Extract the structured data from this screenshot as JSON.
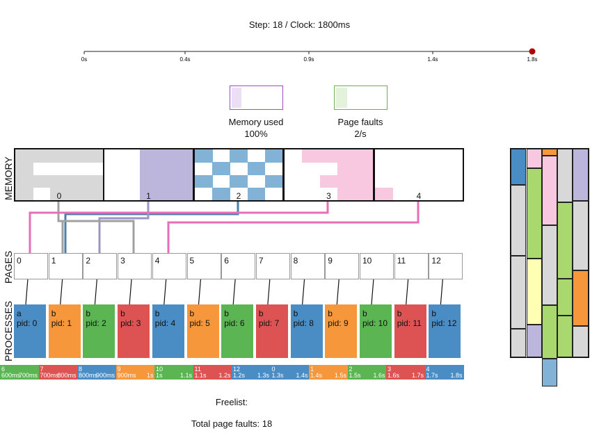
{
  "step_label": "Step: 18 /  Clock: 1800ms",
  "timeline": {
    "ticks": [
      "0s",
      "0.4s",
      "0.9s",
      "1.4s",
      "1.8s"
    ],
    "marker_color": "#b30000"
  },
  "meters": [
    {
      "label": "Memory used",
      "value": "100%",
      "color": "#a24bc7"
    },
    {
      "label": "Page faults",
      "value": "2/s",
      "color": "#6ab04c"
    }
  ],
  "sections": {
    "memory": "MEMORY",
    "pages": "PAGES",
    "processes": "PROCESSES"
  },
  "memory_frames": [
    {
      "id": "0",
      "color": "#d8d8d8"
    },
    {
      "id": "1",
      "color": "#bcb6dd"
    },
    {
      "id": "2",
      "color": "#82b3d6"
    },
    {
      "id": "3",
      "color": "#f8c8e0"
    },
    {
      "id": "4",
      "color": "#f8c8e0"
    }
  ],
  "pages": [
    "0",
    "1",
    "2",
    "3",
    "4",
    "5",
    "6",
    "7",
    "8",
    "9",
    "10",
    "11",
    "12"
  ],
  "processes": [
    {
      "name": "a",
      "pid": "pid: 0",
      "color": "#4a8cc4"
    },
    {
      "name": "b",
      "pid": "pid: 1",
      "color": "#f7973b"
    },
    {
      "name": "b",
      "pid": "pid: 2",
      "color": "#5ab552"
    },
    {
      "name": "b",
      "pid": "pid: 3",
      "color": "#dd5353"
    },
    {
      "name": "b",
      "pid": "pid: 4",
      "color": "#4a8cc4"
    },
    {
      "name": "b",
      "pid": "pid: 5",
      "color": "#f7973b"
    },
    {
      "name": "b",
      "pid": "pid: 6",
      "color": "#5ab552"
    },
    {
      "name": "b",
      "pid": "pid: 7",
      "color": "#dd5353"
    },
    {
      "name": "b",
      "pid": "pid: 8",
      "color": "#4a8cc4"
    },
    {
      "name": "b",
      "pid": "pid: 9",
      "color": "#f7973b"
    },
    {
      "name": "b",
      "pid": "pid: 10",
      "color": "#5ab552"
    },
    {
      "name": "b",
      "pid": "pid: 11",
      "color": "#dd5353"
    },
    {
      "name": "b",
      "pid": "pid: 12",
      "color": "#4a8cc4"
    }
  ],
  "schedule": [
    {
      "pid": "6",
      "t0": "600ms",
      "t1": "700ms",
      "color": "#5ab552"
    },
    {
      "pid": "7",
      "t0": "700ms",
      "t1": "800ms",
      "color": "#dd5353"
    },
    {
      "pid": "8",
      "t0": "800ms",
      "t1": "900ms",
      "color": "#4a8cc4"
    },
    {
      "pid": "9",
      "t0": "900ms",
      "t1": "1s",
      "color": "#f7973b"
    },
    {
      "pid": "10",
      "t0": "1s",
      "t1": "1.1s",
      "color": "#5ab552"
    },
    {
      "pid": "11",
      "t0": "1.1s",
      "t1": "1.2s",
      "color": "#dd5353"
    },
    {
      "pid": "12",
      "t0": "1.2s",
      "t1": "1.3s",
      "color": "#4a8cc4"
    },
    {
      "pid": "0",
      "t0": "1.3s",
      "t1": "1.4s",
      "color": "#4a8cc4"
    },
    {
      "pid": "1",
      "t0": "1.4s",
      "t1": "1.5s",
      "color": "#f7973b"
    },
    {
      "pid": "2",
      "t0": "1.5s",
      "t1": "1.6s",
      "color": "#5ab552"
    },
    {
      "pid": "3",
      "t0": "1.6s",
      "t1": "1.7s",
      "color": "#dd5353"
    },
    {
      "pid": "4",
      "t0": "1.7s",
      "t1": "1.8s",
      "color": "#4a8cc4"
    }
  ],
  "freelist_label": "Freelist:",
  "total_faults_label": "Total page faults: 18",
  "disk_columns": [
    [
      "#4a8cc4",
      "#d8d8d8",
      "#d8d8d8",
      "#d8d8d8"
    ],
    [
      "#f8c8e0",
      "#a9d86e",
      "#ffffb3",
      "#bcb6dd"
    ],
    [
      "#f7973b",
      "#f8c8e0",
      "#d8d8d8",
      "#a9d86e",
      "#82b3d6"
    ],
    [
      "#d8d8d8",
      "#a9d86e",
      "#a9d86e",
      "#a9d86e"
    ],
    [
      "#bcb6dd",
      "#d8d8d8",
      "#f7973b",
      "#d8d8d8"
    ]
  ]
}
